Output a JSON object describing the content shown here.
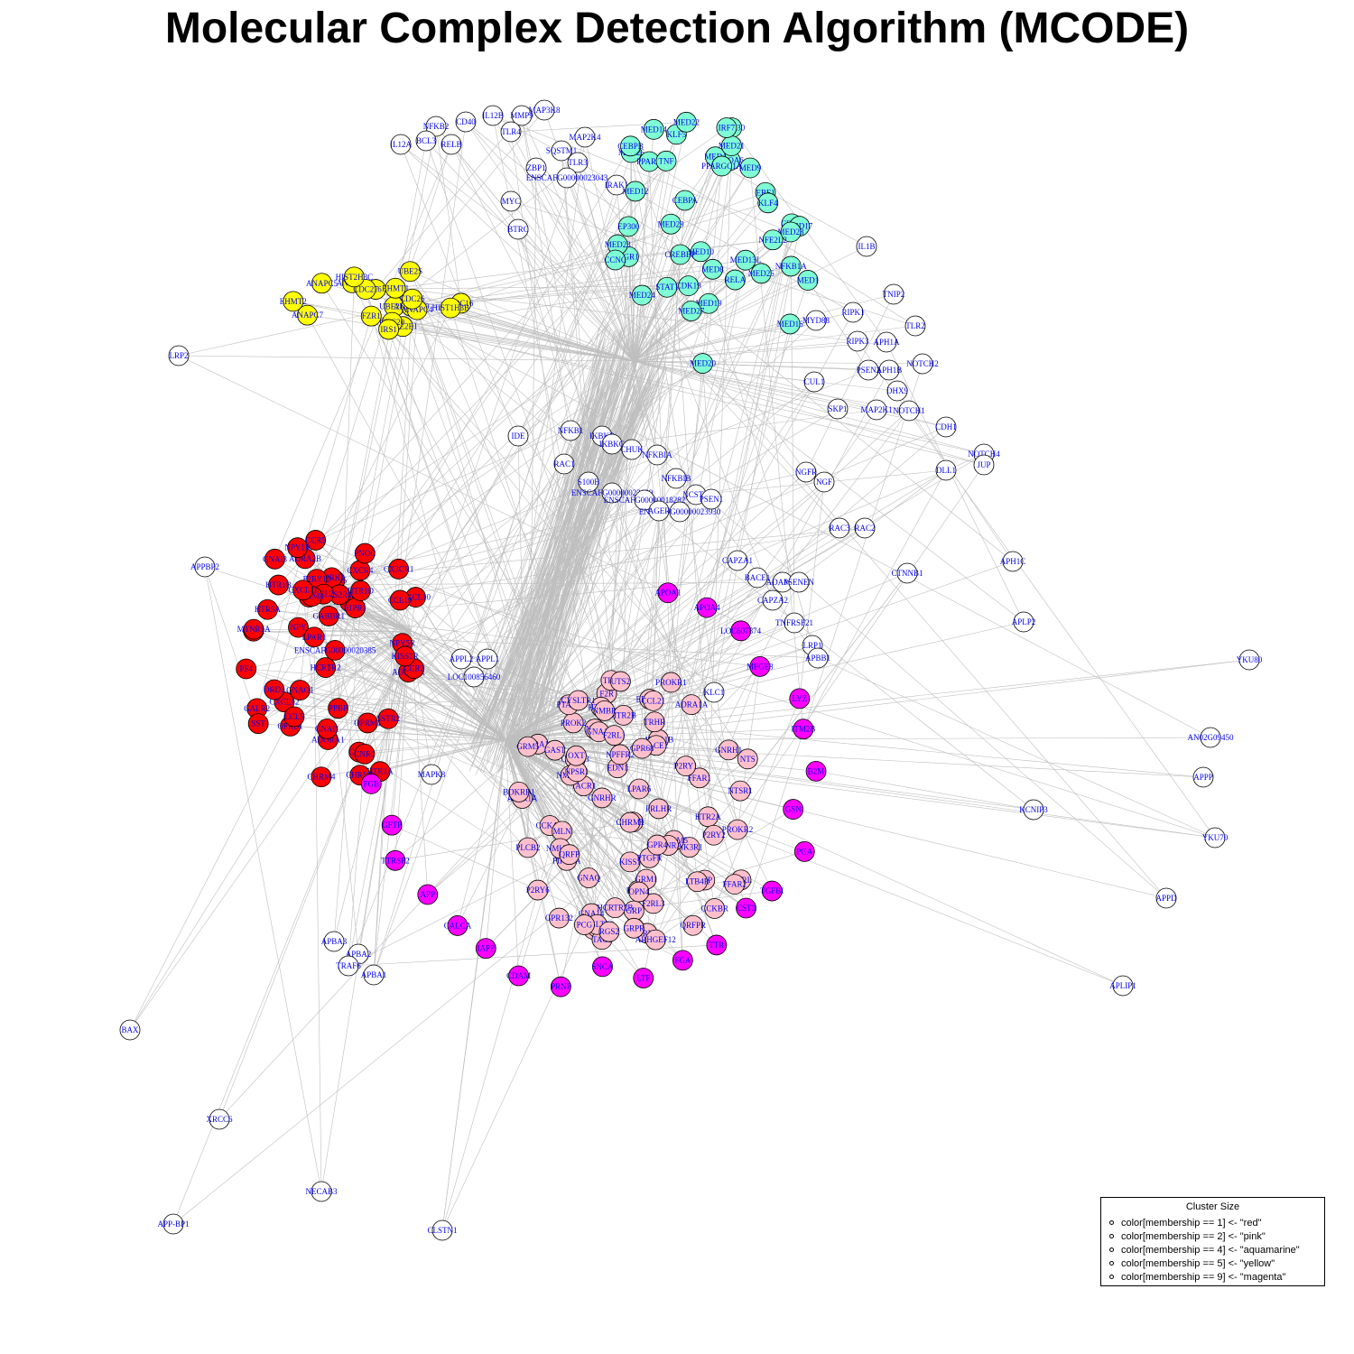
{
  "title": "Molecular Complex Detection Algorithm (MCODE)",
  "legend": {
    "title": "Cluster Size",
    "items": [
      "color[membership == 1] <- \"red\"",
      "color[membership == 2] <- \"pink\"",
      "color[membership == 4] <- \"aquamarine\"",
      "color[membership == 5] <- \"yellow\"",
      "color[membership == 9] <- \"magenta\""
    ]
  },
  "colors": {
    "red": "#ff0000",
    "pink": "#ffc0cb",
    "aquamarine": "#7fffd4",
    "yellow": "#ffff00",
    "magenta": "#ff00ff",
    "none": "#ffffff",
    "edge": "#bebebe",
    "label": "#0000ee"
  },
  "nodes": {
    "white": [
      "NFKB2",
      "CD40",
      "IL12B",
      "MMP9",
      "MAP3K8",
      "IL12A",
      "BCL3",
      "RELB",
      "TLR4",
      "SQSTM1",
      "MAP2K4",
      "ZBP1",
      "TLR3",
      "ENSCAFG00000023043",
      "IRAK1",
      "MYC",
      "BTRC",
      "IL1B",
      "TNIP2",
      "RIPK1",
      "TLR2",
      "MYD88",
      "RIPK3",
      "APH1A",
      "NOTCH2",
      "PSEN2",
      "APH1B",
      "CUL1",
      "DHX9",
      "SKP1",
      "MAP2K1",
      "NOTCH1",
      "CDH1",
      "NOTCH4",
      "JUP",
      "LRP2",
      "IDE",
      "NFKB1",
      "IKBKB",
      "IKBKG",
      "CHUK",
      "NFKBIA",
      "RAC1",
      "S100B",
      "ENSCAFG00000023639",
      "ENSCAFG00000018282",
      "ENSCAFG00000023930",
      "NFKBIB",
      "NCSTN",
      "PSEN1",
      "AGER",
      "NGFR",
      "NGF",
      "DLL1",
      "RAC3",
      "RAC2",
      "APPBP2",
      "CAPZA1",
      "BACE1",
      "ADAM17",
      "PSENEN",
      "CAPZA2",
      "CTNNB1",
      "APH1C",
      "TNFRSF21",
      "APLP2",
      "LRP1",
      "APBB1",
      "KLC1",
      "APPL1",
      "APPL2",
      "LOC100856460",
      "MAPK8",
      "MAPK1",
      "YKU80",
      "AN02G09450",
      "APPP",
      "KCNIP3",
      "YKU70",
      "APPD",
      "APLIP1",
      "APBA3",
      "APBA2",
      "TRAF6",
      "APBA1",
      "BAX",
      "XRCC6",
      "NECAB3",
      "APP-BP1",
      "CLSTN1"
    ],
    "red": [
      "IL8",
      "GNAI3",
      "ADRA2B",
      "HTR1A",
      "CCR5",
      "GPR35",
      "ADRA2C",
      "NPY",
      "CHRM2",
      "CX3CR1",
      "SSTR2",
      "OPRK1",
      "ADORA1",
      "CXCL10",
      "CXCL12",
      "S1PR1",
      "OPRM1",
      "OPRD1",
      "NPY5R",
      "TAS2R42",
      "GALR2",
      "HTR1D",
      "GRM2",
      "GABBR1",
      "LPAR1",
      "P2RY12",
      "CCL2",
      "CCL5",
      "SST",
      "HCRTR2",
      "PPBP",
      "ENSCAFG00000020385",
      "GNAI1",
      "GNAO1",
      "CXCR4",
      "MTNR1A",
      "HTR1B",
      "ADRA2A",
      "DRD2",
      "GRM8",
      "PF4",
      "CCR1",
      "CCL19",
      "CCR2",
      "CXCL11",
      "PNOC",
      "CHRM4",
      "KISS1R",
      "CNR1",
      "NPY1R",
      "HTR5A"
    ],
    "pink": [
      "GHRL",
      "PIK3R1",
      "PLCB2",
      "PLCB4",
      "HRH1",
      "PIK3CA",
      "HTR2A",
      "F2R",
      "PROKR1",
      "ADRA1B",
      "OXTR",
      "GRP",
      "PROK2",
      "NMB",
      "PTAFR",
      "EDN1",
      "TACR1",
      "GNA11",
      "GNA14",
      "GNAQ",
      "PLCB1",
      "AVP",
      "NTSR1",
      "AVPR1A",
      "AVPR1B",
      "CCKAR",
      "CCKBR",
      "CHRM1",
      "CHRM3",
      "CHRM5",
      "EDNRA",
      "EDNRB",
      "F2RL1",
      "F2RL3",
      "FFAR1",
      "FFAR2",
      "GPR132",
      "GRM1",
      "GRM5",
      "GRPR",
      "HCRTR1",
      "HCRTR2B",
      "HTR2B",
      "HTR2C",
      "KISS1",
      "LPAR6",
      "LTB4R",
      "MLN",
      "NMBR",
      "NMUR1",
      "NMUR2",
      "NPSR1",
      "NTS",
      "OXT",
      "P2RY1",
      "P2RY2",
      "P2RY6",
      "PRLHR",
      "QRFP",
      "QRFPR",
      "TAC1",
      "TRH",
      "TRHR",
      "CYSLTR1",
      "CYSLTR2",
      "GAST",
      "GNRHR",
      "GNRH1",
      "PROKR2",
      "RGS2",
      "UTS2",
      "BDKRB1",
      "PTGFR",
      "ARHGEF12",
      "PLCE1",
      "PCG",
      "CCL21",
      "NPFFR2",
      "ADRA1A",
      "GPR68",
      "GPR4",
      "OPN4"
    ],
    "aqua": [
      "EGR1",
      "MED25",
      "MED26",
      "MED8",
      "MED20",
      "MED23",
      "MED29",
      "NCOA6",
      "PPARA",
      "CDK19",
      "MED12",
      "MED4",
      "MED1",
      "MED30",
      "MED19",
      "MED14",
      "MED24",
      "CDK8",
      "CCNC",
      "EP300",
      "KLF5",
      "MED27",
      "MED13L",
      "MED9",
      "MED10",
      "MED16",
      "MED21",
      "MED17",
      "MED22",
      "MED28",
      "CEBPA",
      "PPARGC1A",
      "TNF",
      "EBF1",
      "NFKB1A",
      "RELA",
      "NFE2L2",
      "CREBBP",
      "KLF4",
      "CEBPB",
      "IRF7",
      "STAT1"
    ],
    "yellow": [
      "IL6",
      "CDC16",
      "ANAPC7",
      "ANAPC2",
      "UBE2D1",
      "ANAPC5",
      "CDC27",
      "FZR1",
      "ANAPC10",
      "ANAPC4",
      "EHMT1",
      "EHMT2",
      "HIST1H3B",
      "HIST2H3C",
      "CDC26",
      "UBE2E1",
      "UBE2S",
      "CDC20",
      "IRS1"
    ],
    "magenta": [
      "APOA1",
      "APOA4",
      "LOC607874",
      "MFGE8",
      "LYZ",
      "ITM2B",
      "B2M",
      "GSN",
      "PGA",
      "TGFBI",
      "CST3",
      "TTR",
      "FGA",
      "LTF",
      "SNCA",
      "PRNP",
      "CDAM",
      "IAPP",
      "CALCA",
      "APP",
      "TTRSP2",
      "GFTP",
      "FGB"
    ]
  }
}
